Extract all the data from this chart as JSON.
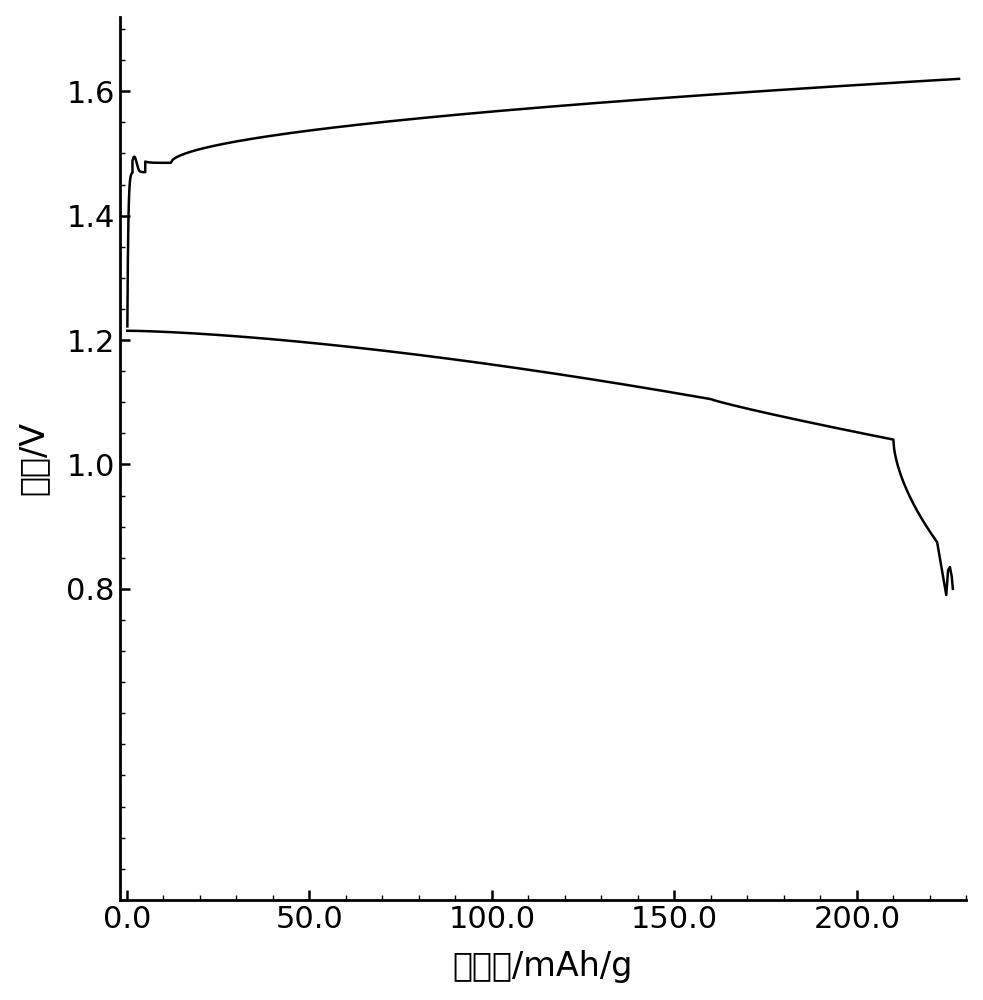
{
  "title": "",
  "xlabel": "比容量/mAh/g",
  "ylabel": "电压/V",
  "xlim": [
    -2,
    230
  ],
  "ylim": [
    0.3,
    1.72
  ],
  "xticks": [
    0.0,
    50.0,
    100.0,
    150.0,
    200.0
  ],
  "yticks": [
    0.8,
    1.0,
    1.2,
    1.4,
    1.6
  ],
  "line_color": "#000000",
  "background_color": "#ffffff",
  "line_width": 1.8,
  "xlabel_fontsize": 24,
  "ylabel_fontsize": 24,
  "tick_fontsize": 22
}
